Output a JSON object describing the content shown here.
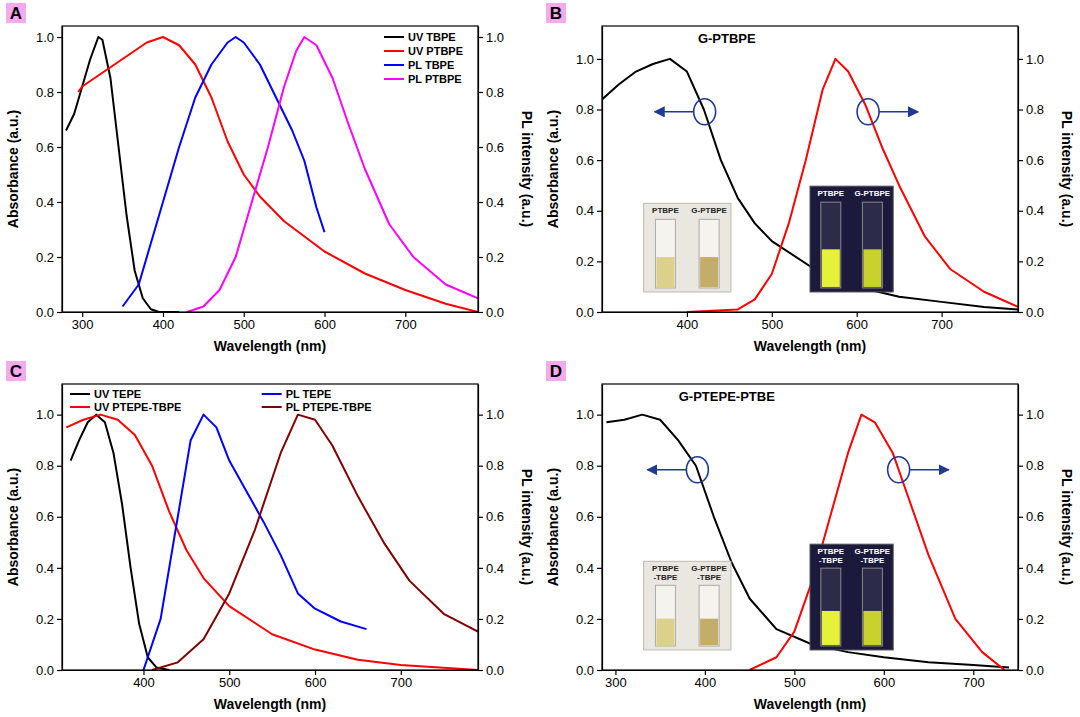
{
  "chart_data": [
    {
      "type": "line",
      "panel_label": "A",
      "legend": "top-right",
      "x_label": "Wavelength (nm)",
      "y_label": "Absorbance (a.u.)",
      "y2_label": "PL intensity (a.u.)",
      "xlim": [
        275,
        790
      ],
      "xticks": [
        300,
        400,
        500,
        600,
        700
      ],
      "ylim": [
        0,
        1.04
      ],
      "yticks": [
        {
          "value": 0,
          "label": "0.0"
        },
        {
          "value": 0.2,
          "label": "0.2"
        },
        {
          "value": 0.4,
          "label": "0.4"
        },
        {
          "value": 0.6,
          "label": "0.6"
        },
        {
          "value": 0.8,
          "label": "0.8"
        },
        {
          "value": 1,
          "label": "1.0"
        }
      ],
      "y2lim": [
        0,
        1.04
      ],
      "y2ticks": [
        {
          "value": 0,
          "label": "0.0"
        },
        {
          "value": 0.2,
          "label": "0.2"
        },
        {
          "value": 0.4,
          "label": "0.4"
        },
        {
          "value": 0.6,
          "label": "0.6"
        },
        {
          "value": 0.8,
          "label": "0.8"
        },
        {
          "value": 1,
          "label": "1.0"
        }
      ],
      "series": [
        {
          "name": "UV TBPE",
          "color": "#000000",
          "axis": "y",
          "x": [
            280,
            290,
            300,
            310,
            320,
            325,
            335,
            345,
            355,
            365,
            375,
            385,
            395,
            420
          ],
          "values": [
            0.66,
            0.72,
            0.82,
            0.92,
            1.0,
            0.99,
            0.85,
            0.6,
            0.35,
            0.15,
            0.05,
            0.01,
            0.0,
            0.0
          ]
        },
        {
          "name": "UV PTBPE",
          "color": "#ff0000",
          "axis": "y",
          "x": [
            295,
            300,
            320,
            340,
            360,
            380,
            400,
            420,
            440,
            460,
            480,
            500,
            520,
            550,
            600,
            650,
            700,
            750,
            790
          ],
          "values": [
            0.8,
            0.82,
            0.86,
            0.9,
            0.94,
            0.98,
            1.0,
            0.97,
            0.9,
            0.78,
            0.62,
            0.5,
            0.42,
            0.33,
            0.22,
            0.14,
            0.08,
            0.03,
            0.0
          ]
        },
        {
          "name": "PL TBPE",
          "color": "#0000ff",
          "axis": "y2",
          "x": [
            350,
            370,
            400,
            420,
            440,
            460,
            480,
            490,
            500,
            520,
            540,
            560,
            575,
            590,
            600
          ],
          "values": [
            0.02,
            0.1,
            0.4,
            0.6,
            0.78,
            0.9,
            0.98,
            1.0,
            0.98,
            0.9,
            0.78,
            0.66,
            0.55,
            0.38,
            0.29
          ]
        },
        {
          "name": "PL PTBPE",
          "color": "#ff00ff",
          "axis": "y2",
          "x": [
            430,
            450,
            470,
            490,
            510,
            530,
            550,
            565,
            575,
            590,
            610,
            630,
            650,
            680,
            710,
            750,
            790
          ],
          "values": [
            0.0,
            0.02,
            0.08,
            0.2,
            0.4,
            0.6,
            0.82,
            0.95,
            1.0,
            0.97,
            0.85,
            0.68,
            0.52,
            0.32,
            0.2,
            0.1,
            0.05
          ]
        }
      ]
    },
    {
      "type": "line",
      "panel_label": "B",
      "title": "G-PTBPE",
      "x_label": "Wavelength (nm)",
      "y_label": "Absorbance (a.u.)",
      "y2_label": "PL intensity (a.u.)",
      "xlim": [
        300,
        790
      ],
      "xticks": [
        400,
        500,
        600,
        700
      ],
      "ylim": [
        0,
        1.13
      ],
      "yticks": [
        {
          "value": 0,
          "label": "0.0"
        },
        {
          "value": 0.2,
          "label": "0.2"
        },
        {
          "value": 0.4,
          "label": "0.4"
        },
        {
          "value": 0.6,
          "label": "0.6"
        },
        {
          "value": 0.8,
          "label": "0.8"
        },
        {
          "value": 1,
          "label": "1.0"
        }
      ],
      "y2lim": [
        0,
        1.13
      ],
      "y2ticks": [
        {
          "value": 0,
          "label": "0.0"
        },
        {
          "value": 0.2,
          "label": "0.2"
        },
        {
          "value": 0.4,
          "label": "0.4"
        },
        {
          "value": 0.6,
          "label": "0.6"
        },
        {
          "value": 0.8,
          "label": "0.8"
        },
        {
          "value": 1,
          "label": "1.0"
        }
      ],
      "annotations": [
        [
          "PTBPE",
          "G-PTBPE"
        ],
        [
          "PTBPE",
          "G-PTBPE"
        ]
      ],
      "series": [
        {
          "color": "#000000",
          "axis": "y",
          "x": [
            300,
            320,
            340,
            360,
            380,
            400,
            420,
            440,
            460,
            480,
            500,
            550,
            600,
            650,
            700,
            750,
            790
          ],
          "values": [
            0.84,
            0.9,
            0.95,
            0.98,
            1.0,
            0.95,
            0.8,
            0.6,
            0.45,
            0.35,
            0.28,
            0.17,
            0.1,
            0.06,
            0.04,
            0.02,
            0.01
          ]
        },
        {
          "color": "#ff0000",
          "axis": "y2",
          "x": [
            400,
            460,
            480,
            500,
            520,
            540,
            560,
            575,
            590,
            610,
            630,
            650,
            680,
            710,
            750,
            790
          ],
          "values": [
            0.0,
            0.01,
            0.05,
            0.15,
            0.35,
            0.6,
            0.88,
            1.0,
            0.95,
            0.82,
            0.65,
            0.5,
            0.3,
            0.17,
            0.08,
            0.02
          ]
        }
      ]
    },
    {
      "type": "line",
      "panel_label": "C",
      "legend": "top",
      "x_label": "Wavelength (nm)",
      "y_label": "Absorbance (a.u.)",
      "y2_label": "PL intensity (a.u.)",
      "xlim": [
        305,
        790
      ],
      "xticks": [
        400,
        500,
        600,
        700
      ],
      "ylim": [
        0,
        1.12
      ],
      "yticks": [
        {
          "value": 0,
          "label": "0.0"
        },
        {
          "value": 0.2,
          "label": "0.2"
        },
        {
          "value": 0.4,
          "label": "0.4"
        },
        {
          "value": 0.6,
          "label": "0.6"
        },
        {
          "value": 0.8,
          "label": "0.8"
        },
        {
          "value": 1,
          "label": "1.0"
        }
      ],
      "y2lim": [
        0,
        1.12
      ],
      "y2ticks": [
        {
          "value": 0,
          "label": "0.0"
        },
        {
          "value": 0.2,
          "label": "0.2"
        },
        {
          "value": 0.4,
          "label": "0.4"
        },
        {
          "value": 0.6,
          "label": "0.6"
        },
        {
          "value": 0.8,
          "label": "0.8"
        },
        {
          "value": 1,
          "label": "1.0"
        }
      ],
      "series": [
        {
          "name": "UV TEPE",
          "color": "#000000",
          "axis": "y",
          "x": [
            315,
            325,
            335,
            345,
            355,
            365,
            375,
            385,
            395,
            405,
            415,
            430
          ],
          "values": [
            0.82,
            0.9,
            0.97,
            1.0,
            0.97,
            0.85,
            0.65,
            0.4,
            0.18,
            0.05,
            0.01,
            0.0
          ]
        },
        {
          "name": "UV PTEPE-TBPE",
          "color": "#ff0000",
          "axis": "y",
          "x": [
            310,
            330,
            350,
            370,
            390,
            410,
            430,
            450,
            470,
            500,
            550,
            600,
            650,
            700,
            790
          ],
          "values": [
            0.95,
            0.98,
            1.0,
            0.98,
            0.92,
            0.8,
            0.62,
            0.47,
            0.36,
            0.25,
            0.14,
            0.08,
            0.04,
            0.02,
            0.0
          ]
        },
        {
          "name": "PL TEPE",
          "color": "#0000ff",
          "axis": "y2",
          "x": [
            400,
            420,
            440,
            455,
            470,
            485,
            500,
            520,
            540,
            560,
            580,
            600,
            630,
            660
          ],
          "values": [
            0.0,
            0.2,
            0.6,
            0.9,
            1.0,
            0.95,
            0.82,
            0.7,
            0.58,
            0.45,
            0.3,
            0.24,
            0.19,
            0.16
          ]
        },
        {
          "name": "PL PTEPE-TBPE",
          "color": "#800000",
          "axis": "y2",
          "x": [
            410,
            440,
            470,
            500,
            530,
            560,
            580,
            600,
            620,
            650,
            680,
            710,
            750,
            790
          ],
          "values": [
            0.0,
            0.03,
            0.12,
            0.3,
            0.55,
            0.85,
            1.0,
            0.98,
            0.88,
            0.68,
            0.5,
            0.35,
            0.22,
            0.15
          ]
        }
      ]
    },
    {
      "type": "line",
      "panel_label": "D",
      "title": "G-PTEPE-PTBE",
      "x_label": "Wavelength (nm)",
      "y_label": "Absorbance (a.u.)",
      "y2_label": "PL intensity (a.u.)",
      "xlim": [
        285,
        750
      ],
      "xticks": [
        300,
        400,
        500,
        600,
        700
      ],
      "ylim": [
        0,
        1.12
      ],
      "yticks": [
        {
          "value": 0,
          "label": "0.0"
        },
        {
          "value": 0.2,
          "label": "0.2"
        },
        {
          "value": 0.4,
          "label": "0.4"
        },
        {
          "value": 0.6,
          "label": "0.6"
        },
        {
          "value": 0.8,
          "label": "0.8"
        },
        {
          "value": 1,
          "label": "1.0"
        }
      ],
      "y2lim": [
        0,
        1.12
      ],
      "y2ticks": [
        {
          "value": 0,
          "label": "0.0"
        },
        {
          "value": 0.2,
          "label": "0.2"
        },
        {
          "value": 0.4,
          "label": "0.4"
        },
        {
          "value": 0.6,
          "label": "0.6"
        },
        {
          "value": 0.8,
          "label": "0.8"
        },
        {
          "value": 1,
          "label": "1.0"
        }
      ],
      "annotations": [
        [
          "PTBPE-TBPE",
          "G-PTBPE-TBPE"
        ],
        [
          "PTBPE-TBPE",
          "G-PTBPE-TBPE"
        ]
      ],
      "series": [
        {
          "color": "#000000",
          "axis": "y",
          "x": [
            290,
            310,
            330,
            350,
            370,
            390,
            410,
            430,
            450,
            480,
            520,
            560,
            600,
            650,
            700,
            740
          ],
          "values": [
            0.97,
            0.98,
            1.0,
            0.98,
            0.9,
            0.8,
            0.6,
            0.42,
            0.28,
            0.16,
            0.1,
            0.07,
            0.05,
            0.03,
            0.02,
            0.01
          ]
        },
        {
          "color": "#ff0000",
          "axis": "y2",
          "x": [
            450,
            480,
            500,
            520,
            540,
            560,
            575,
            590,
            610,
            630,
            650,
            680,
            710,
            735
          ],
          "values": [
            0.0,
            0.05,
            0.15,
            0.35,
            0.6,
            0.85,
            1.0,
            0.97,
            0.85,
            0.65,
            0.45,
            0.2,
            0.07,
            0.0
          ]
        }
      ]
    }
  ]
}
